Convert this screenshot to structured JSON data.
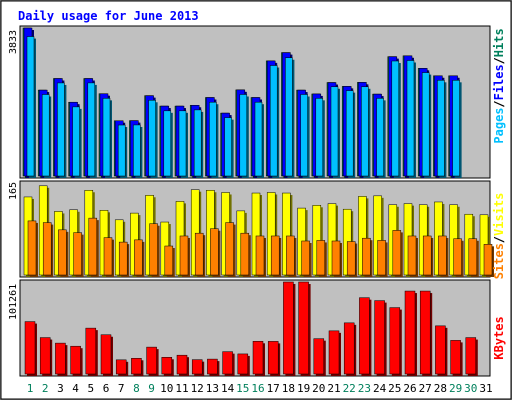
{
  "chart_data": [
    {
      "type": "bar",
      "panel": "hits-files-pages",
      "title": "Daily usage for June 2013",
      "categories": [
        "1",
        "2",
        "3",
        "4",
        "5",
        "6",
        "7",
        "8",
        "9",
        "10",
        "11",
        "12",
        "13",
        "14",
        "15",
        "16",
        "17",
        "18",
        "19",
        "20",
        "21",
        "22",
        "23",
        "24",
        "25",
        "26",
        "27",
        "28",
        "29",
        "30",
        "31"
      ],
      "ytick_label": "3833",
      "ylim": [
        0,
        3833
      ],
      "series": [
        {
          "name": "Hits",
          "color": "#00805c",
          "values": [
            3833,
            2225,
            2525,
            1911,
            2525,
            2131,
            1431,
            1434,
            2081,
            1811,
            1811,
            1831,
            2033,
            1629,
            2231,
            2033,
            2981,
            3196,
            2225,
            2125,
            2421,
            2321,
            2425,
            2121,
            3091,
            3113,
            2788,
            2595,
            2595,
            null,
            null
          ]
        },
        {
          "name": "Files",
          "color": "#0000ff",
          "values": [
            3833,
            2225,
            2525,
            1911,
            2525,
            2131,
            1431,
            1434,
            2081,
            1811,
            1811,
            1831,
            2033,
            1629,
            2231,
            2033,
            2981,
            3196,
            2225,
            2125,
            2421,
            2321,
            2425,
            2121,
            3091,
            3113,
            2788,
            2595,
            2595,
            null,
            null
          ]
        },
        {
          "name": "Pages",
          "color": "#00c0ff",
          "values": [
            3611,
            2110,
            2410,
            1790,
            2411,
            2011,
            1320,
            1322,
            1961,
            1688,
            1688,
            1712,
            1911,
            1512,
            2111,
            1911,
            2861,
            3063,
            2111,
            2011,
            2311,
            2211,
            2311,
            2011,
            2978,
            2991,
            2678,
            2478,
            2478,
            null,
            null
          ]
        }
      ]
    },
    {
      "type": "bar",
      "panel": "visits-sites",
      "categories": [
        "1",
        "2",
        "3",
        "4",
        "5",
        "6",
        "7",
        "8",
        "9",
        "10",
        "11",
        "12",
        "13",
        "14",
        "15",
        "16",
        "17",
        "18",
        "19",
        "20",
        "21",
        "22",
        "23",
        "24",
        "25",
        "26",
        "27",
        "28",
        "29",
        "30",
        "31"
      ],
      "ytick_label": "165",
      "ylim": [
        0,
        165
      ],
      "series": [
        {
          "name": "Visits",
          "color": "#ffff00",
          "values": [
            140,
            160,
            114,
            117,
            152,
            116,
            99,
            111,
            143,
            95,
            132,
            153,
            152,
            148,
            115,
            147,
            148,
            147,
            120,
            125,
            128,
            118,
            141,
            142,
            126,
            128,
            126,
            131,
            126,
            109,
            108
          ]
        },
        {
          "name": "Sites",
          "color": "#ff8000",
          "values": [
            97,
            94,
            81,
            76,
            102,
            67,
            59,
            63,
            92,
            52,
            70,
            75,
            83,
            94,
            75,
            70,
            70,
            70,
            61,
            62,
            61,
            60,
            66,
            62,
            80,
            70,
            70,
            70,
            65,
            65,
            55
          ]
        }
      ]
    },
    {
      "type": "bar",
      "panel": "kbytes",
      "categories": [
        "1",
        "2",
        "3",
        "4",
        "5",
        "6",
        "7",
        "8",
        "9",
        "10",
        "11",
        "12",
        "13",
        "14",
        "15",
        "16",
        "17",
        "18",
        "19",
        "20",
        "21",
        "22",
        "23",
        "24",
        "25",
        "26",
        "27",
        "28",
        "29",
        "30",
        "31"
      ],
      "ytick_label": "101261",
      "ylim": [
        0,
        101261
      ],
      "series": [
        {
          "name": "KBytes",
          "color": "#ff0000",
          "values": [
            57700,
            40100,
            34000,
            30600,
            50500,
            43200,
            15600,
            17300,
            29600,
            18400,
            20700,
            15800,
            16400,
            24600,
            22100,
            36000,
            35900,
            101261,
            101261,
            38900,
            47500,
            56300,
            84000,
            80800,
            73100,
            91300,
            91300,
            53000,
            37000,
            40100,
            null
          ]
        }
      ]
    }
  ],
  "legend_right": {
    "top": [
      {
        "text": "Pages",
        "color": "#00c0ff"
      },
      {
        "text": "Files",
        "color": "#0000ff"
      },
      {
        "text": "Hits",
        "color": "#00805c"
      }
    ],
    "middle": [
      {
        "text": "Sites",
        "color": "#ff8000"
      },
      {
        "text": "Visits",
        "color": "#ffff00"
      }
    ],
    "bottom": [
      {
        "text": "KBytes",
        "color": "#ff0000"
      }
    ]
  },
  "weekend_days": [
    "1",
    "2",
    "8",
    "9",
    "15",
    "16",
    "22",
    "23",
    "29",
    "30"
  ],
  "colors": {
    "title": "#0000ff",
    "panel_bg": "#c0c0c0",
    "weekday_label": "#000000",
    "weekend_label": "#00805c"
  }
}
